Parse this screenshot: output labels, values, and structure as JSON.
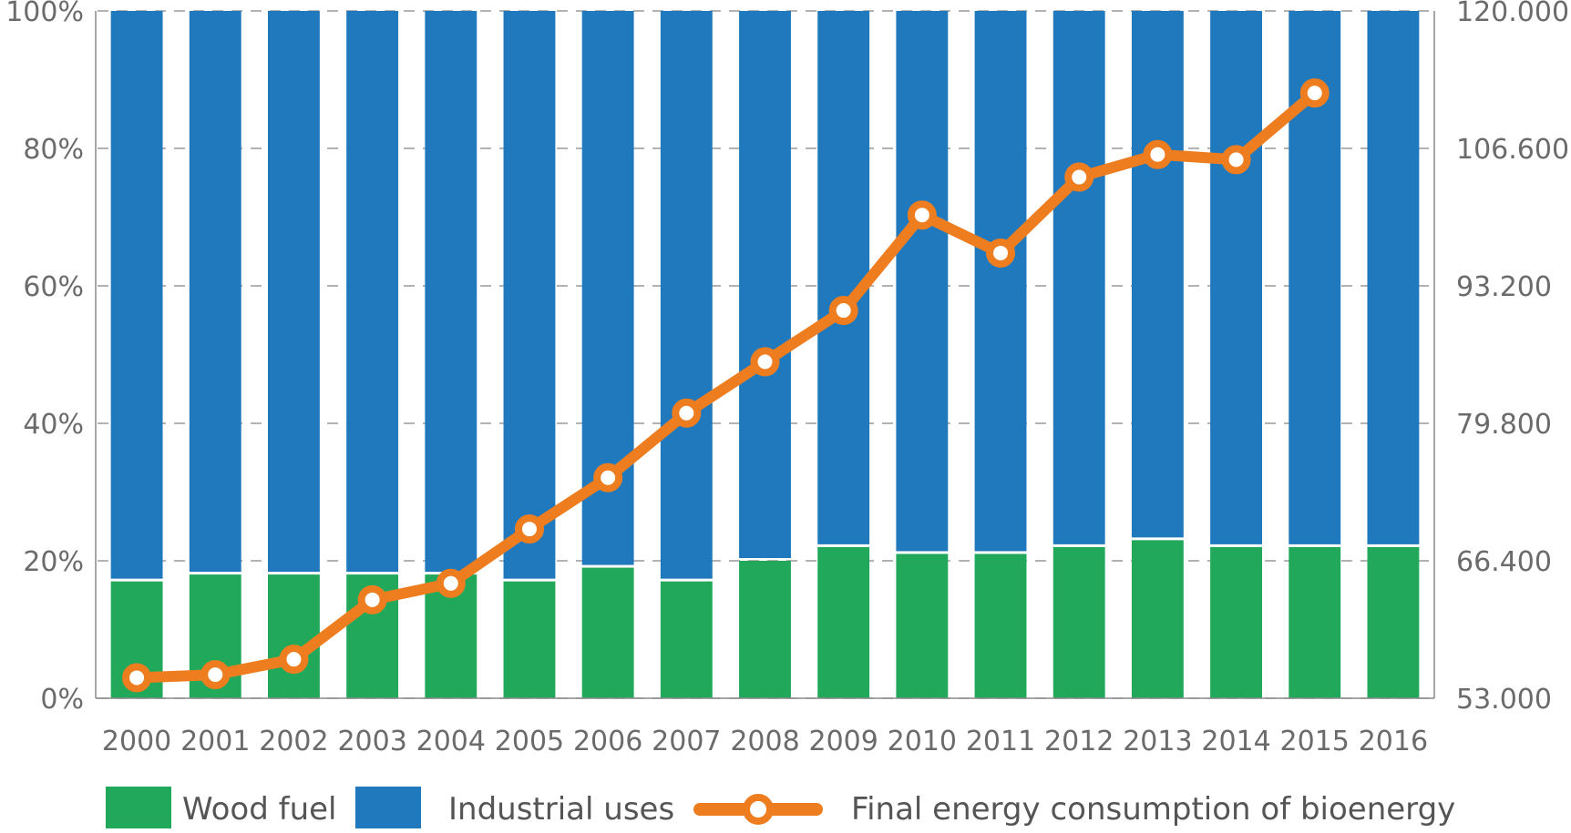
{
  "chart_data": {
    "type": "bar",
    "stacked": true,
    "categories": [
      "2000",
      "2001",
      "2002",
      "2003",
      "2004",
      "2005",
      "2006",
      "2007",
      "2008",
      "2009",
      "2010",
      "2011",
      "2012",
      "2013",
      "2014",
      "2015",
      "2016"
    ],
    "series": [
      {
        "name": "Wood fuel",
        "type": "bar",
        "axis": "left",
        "color": "#22a85a",
        "values": [
          17,
          18,
          18,
          18,
          18,
          17,
          19,
          17,
          20,
          22,
          21,
          21,
          22,
          23,
          22,
          22,
          22
        ]
      },
      {
        "name": "Industrial uses",
        "type": "bar",
        "axis": "left",
        "color": "#2079bd",
        "values": [
          83,
          82,
          82,
          82,
          82,
          83,
          81,
          83,
          80,
          78,
          79,
          79,
          78,
          77,
          78,
          78,
          78
        ]
      },
      {
        "name": "Final energy consumption of bioenergy",
        "type": "line",
        "axis": "right",
        "color": "#ee7d1f",
        "values": [
          55000,
          55300,
          56800,
          62600,
          64200,
          69500,
          74500,
          80800,
          85800,
          90800,
          100100,
          96400,
          103800,
          106000,
          105500,
          112000,
          null
        ]
      }
    ],
    "left_axis": {
      "ticks": [
        "0%",
        "20%",
        "40%",
        "60%",
        "80%",
        "100%"
      ],
      "ylim": [
        0,
        100
      ]
    },
    "right_axis": {
      "ticks": [
        "53.000",
        "66.400",
        "79.800",
        "93.200",
        "106.600",
        "120.000"
      ],
      "ylim": [
        53000,
        120000
      ]
    },
    "grid": "dashed horizontal",
    "legend_position": "bottom",
    "legend": [
      {
        "label": "Wood fuel",
        "color": "#22a85a",
        "kind": "box"
      },
      {
        "label": "Industrial uses",
        "color": "#2079bd",
        "kind": "box"
      },
      {
        "label": "Final energy consumption of bioenergy",
        "color": "#ee7d1f",
        "kind": "line-marker"
      }
    ]
  }
}
